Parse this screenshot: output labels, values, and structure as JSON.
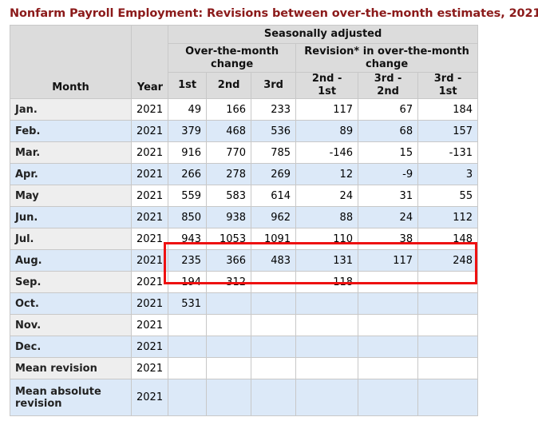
{
  "title": "Nonfarm Payroll Employment: Revisions between over-the-month estimates, 2021",
  "header": {
    "seasonally_adjusted": "Seasonally adjusted",
    "over_the_month_change": "Over-the-month change",
    "revision_change": "Revision* in over-the-month change",
    "month": "Month",
    "year": "Year",
    "cols": [
      "1st",
      "2nd",
      "3rd",
      "2nd - 1st",
      "3rd - 2nd",
      "3rd - 1st"
    ]
  },
  "rows": [
    {
      "month": "Jan.",
      "year": "2021",
      "c1": "49",
      "c2": "166",
      "c3": "233",
      "r21": "117",
      "r32": "67",
      "r31": "184"
    },
    {
      "month": "Feb.",
      "year": "2021",
      "c1": "379",
      "c2": "468",
      "c3": "536",
      "r21": "89",
      "r32": "68",
      "r31": "157"
    },
    {
      "month": "Mar.",
      "year": "2021",
      "c1": "916",
      "c2": "770",
      "c3": "785",
      "r21": "-146",
      "r32": "15",
      "r31": "-131"
    },
    {
      "month": "Apr.",
      "year": "2021",
      "c1": "266",
      "c2": "278",
      "c3": "269",
      "r21": "12",
      "r32": "-9",
      "r31": "3"
    },
    {
      "month": "May",
      "year": "2021",
      "c1": "559",
      "c2": "583",
      "c3": "614",
      "r21": "24",
      "r32": "31",
      "r31": "55"
    },
    {
      "month": "Jun.",
      "year": "2021",
      "c1": "850",
      "c2": "938",
      "c3": "962",
      "r21": "88",
      "r32": "24",
      "r31": "112"
    },
    {
      "month": "Jul.",
      "year": "2021",
      "c1": "943",
      "c2": "1053",
      "c3": "1091",
      "r21": "110",
      "r32": "38",
      "r31": "148"
    },
    {
      "month": "Aug.",
      "year": "2021",
      "c1": "235",
      "c2": "366",
      "c3": "483",
      "r21": "131",
      "r32": "117",
      "r31": "248"
    },
    {
      "month": "Sep.",
      "year": "2021",
      "c1": "194",
      "c2": "312",
      "c3": "",
      "r21": "118",
      "r32": "",
      "r31": ""
    },
    {
      "month": "Oct.",
      "year": "2021",
      "c1": "531",
      "c2": "",
      "c3": "",
      "r21": "",
      "r32": "",
      "r31": ""
    },
    {
      "month": "Nov.",
      "year": "2021",
      "c1": "",
      "c2": "",
      "c3": "",
      "r21": "",
      "r32": "",
      "r31": ""
    },
    {
      "month": "Dec.",
      "year": "2021",
      "c1": "",
      "c2": "",
      "c3": "",
      "r21": "",
      "r32": "",
      "r31": ""
    },
    {
      "month": "Mean revision",
      "year": "2021",
      "c1": "",
      "c2": "",
      "c3": "",
      "r21": "",
      "r32": "",
      "r31": ""
    },
    {
      "month": "Mean absolute revision",
      "year": "2021",
      "c1": "",
      "c2": "",
      "c3": "",
      "r21": "",
      "r32": "",
      "r31": ""
    }
  ],
  "highlight_color": "#ee1111"
}
